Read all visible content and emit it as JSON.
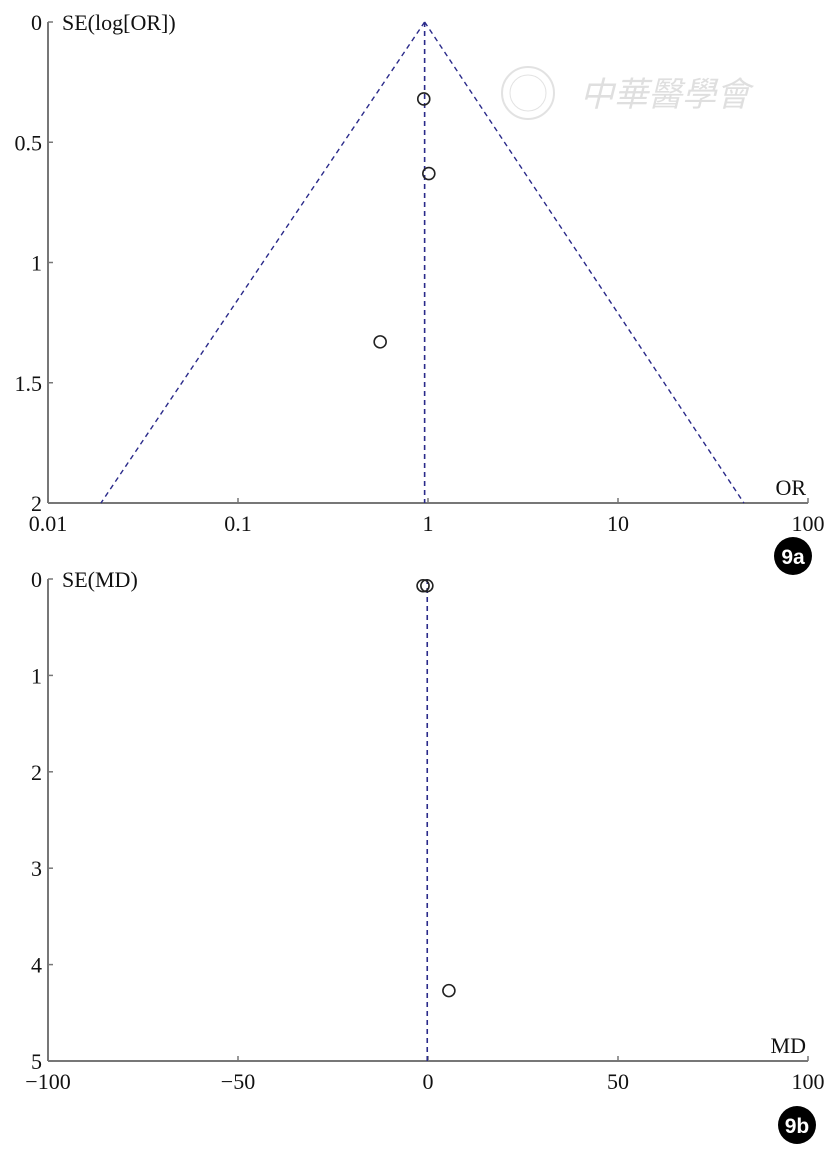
{
  "chart_data": [
    {
      "id": "9a",
      "type": "scatter",
      "subtype": "funnel",
      "panel_label": "9a",
      "xlabel": "OR",
      "ylabel": "SE(log[OR])",
      "x_scale": "log",
      "xlim": [
        0.01,
        100
      ],
      "ylim": [
        0,
        2
      ],
      "y_inverted": true,
      "x_ticks": [
        "0.01",
        "0.1",
        "1",
        "10",
        "100"
      ],
      "y_ticks": [
        "0",
        "0.5",
        "1",
        "1.5",
        "2"
      ],
      "points": [
        {
          "x": 0.95,
          "y": 0.32
        },
        {
          "x": 1.01,
          "y": 0.63
        },
        {
          "x": 0.56,
          "y": 1.33
        }
      ],
      "pooled_estimate": 0.96,
      "funnel_limits_at_max_se": [
        0.019,
        46
      ],
      "grid": false,
      "colors": {
        "points": "#222222",
        "reference_lines": "#2a2a8a",
        "axes": "#777777"
      }
    },
    {
      "id": "9b",
      "type": "scatter",
      "subtype": "funnel",
      "panel_label": "9b",
      "xlabel": "MD",
      "ylabel": "SE(MD)",
      "x_scale": "linear",
      "xlim": [
        -100,
        100
      ],
      "ylim": [
        0,
        5
      ],
      "y_inverted": true,
      "x_ticks": [
        "−100",
        "−50",
        "0",
        "50",
        "100"
      ],
      "y_ticks": [
        "0",
        "1",
        "2",
        "3",
        "4",
        "5"
      ],
      "points": [
        {
          "x": -1.3,
          "y": 0.07
        },
        {
          "x": -0.3,
          "y": 0.07
        },
        {
          "x": 5.5,
          "y": 4.27
        }
      ],
      "pooled_estimate": -0.2,
      "grid": false,
      "colors": {
        "points": "#222222",
        "reference_lines": "#2a2a8a",
        "axes": "#777777"
      }
    }
  ],
  "watermark": {
    "text": "中華醫學會",
    "icon": "society-seal-icon"
  }
}
